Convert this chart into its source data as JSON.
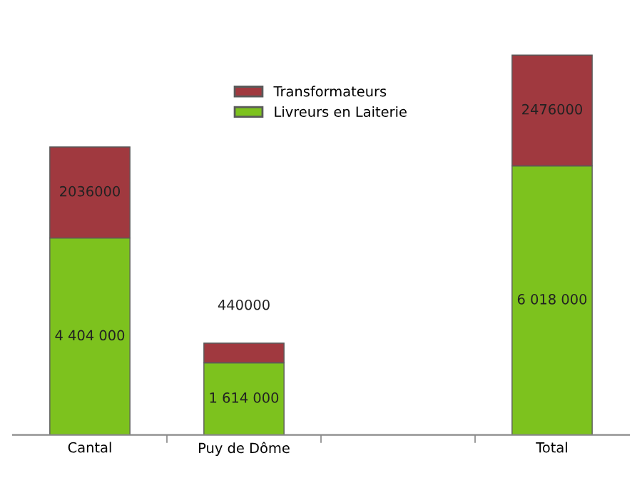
{
  "chart_data": {
    "type": "bar",
    "stacked": true,
    "categories": [
      "Cantal",
      "Puy de Dôme",
      null,
      "Total"
    ],
    "series": [
      {
        "name": "Livreurs en Laiterie",
        "color": "#7dc21e",
        "values": [
          4404000,
          1614000,
          null,
          6018000
        ],
        "value_labels": [
          "4 404 000",
          "1 614 000",
          null,
          "6 018 000"
        ]
      },
      {
        "name": "Transformateurs",
        "color": "#a0393f",
        "values": [
          2036000,
          440000,
          null,
          2476000
        ],
        "value_labels": [
          "2036000",
          "440000",
          null,
          "2476000"
        ]
      }
    ],
    "legend": "top",
    "grid": false
  }
}
